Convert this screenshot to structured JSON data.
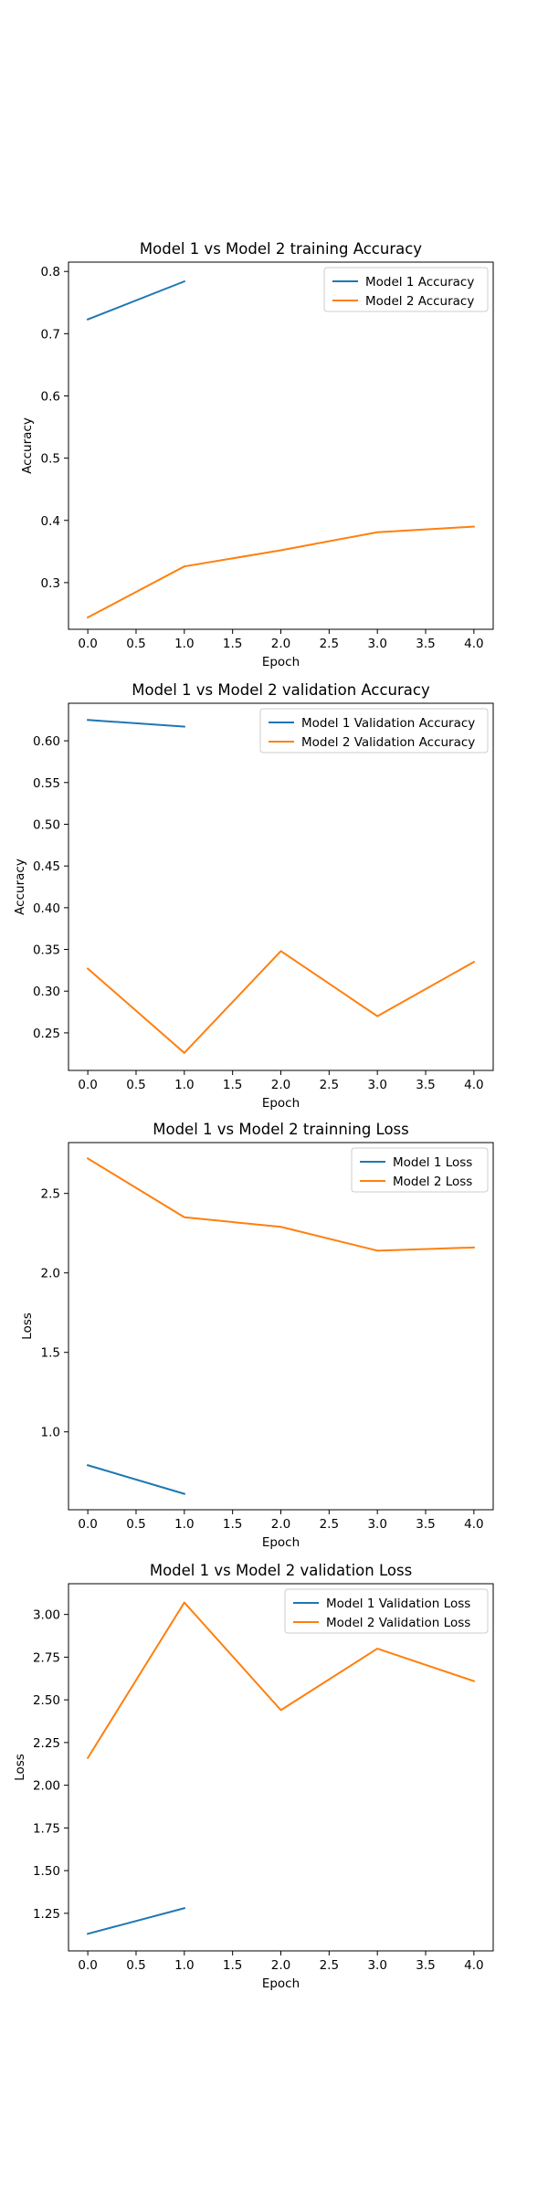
{
  "chart_data": [
    {
      "type": "line",
      "title": "Model 1 vs Model 2 training Accuracy",
      "xlabel": "Epoch",
      "ylabel": "Accuracy",
      "xlim": [
        -0.2,
        4.2
      ],
      "ylim": [
        0.225,
        0.815
      ],
      "xticks": [
        0.0,
        0.5,
        1.0,
        1.5,
        2.0,
        2.5,
        3.0,
        3.5,
        4.0
      ],
      "xtick_labels": [
        "0.0",
        "0.5",
        "1.0",
        "1.5",
        "2.0",
        "2.5",
        "3.0",
        "3.5",
        "4.0"
      ],
      "yticks": [
        0.3,
        0.4,
        0.5,
        0.6,
        0.7,
        0.8
      ],
      "ytick_labels": [
        "0.3",
        "0.4",
        "0.5",
        "0.6",
        "0.7",
        "0.8"
      ],
      "legend_position": "top-right",
      "series": [
        {
          "name": "Model 1 Accuracy",
          "color": "#1f77b4",
          "x": [
            0,
            1
          ],
          "y": [
            0.723,
            0.784
          ]
        },
        {
          "name": "Model 2 Accuracy",
          "color": "#ff7f0e",
          "x": [
            0,
            1,
            2,
            3,
            4
          ],
          "y": [
            0.244,
            0.326,
            0.352,
            0.381,
            0.39
          ]
        }
      ]
    },
    {
      "type": "line",
      "title": "Model 1 vs Model 2 validation Accuracy",
      "xlabel": "Epoch",
      "ylabel": "Accuracy",
      "xlim": [
        -0.2,
        4.2
      ],
      "ylim": [
        0.205,
        0.645
      ],
      "xticks": [
        0.0,
        0.5,
        1.0,
        1.5,
        2.0,
        2.5,
        3.0,
        3.5,
        4.0
      ],
      "xtick_labels": [
        "0.0",
        "0.5",
        "1.0",
        "1.5",
        "2.0",
        "2.5",
        "3.0",
        "3.5",
        "4.0"
      ],
      "yticks": [
        0.25,
        0.3,
        0.35,
        0.4,
        0.45,
        0.5,
        0.55,
        0.6
      ],
      "ytick_labels": [
        "0.25",
        "0.30",
        "0.35",
        "0.40",
        "0.45",
        "0.50",
        "0.55",
        "0.60"
      ],
      "legend_position": "top-right",
      "series": [
        {
          "name": "Model 1 Validation Accuracy",
          "color": "#1f77b4",
          "x": [
            0,
            1
          ],
          "y": [
            0.625,
            0.617
          ]
        },
        {
          "name": "Model 2 Validation Accuracy",
          "color": "#ff7f0e",
          "x": [
            0,
            1,
            2,
            3,
            4
          ],
          "y": [
            0.327,
            0.226,
            0.348,
            0.27,
            0.335
          ]
        }
      ]
    },
    {
      "type": "line",
      "title": "Model 1 vs Model 2 trainning Loss",
      "xlabel": "Epoch",
      "ylabel": "Loss",
      "xlim": [
        -0.2,
        4.2
      ],
      "ylim": [
        0.51,
        2.82
      ],
      "xticks": [
        0.0,
        0.5,
        1.0,
        1.5,
        2.0,
        2.5,
        3.0,
        3.5,
        4.0
      ],
      "xtick_labels": [
        "0.0",
        "0.5",
        "1.0",
        "1.5",
        "2.0",
        "2.5",
        "3.0",
        "3.5",
        "4.0"
      ],
      "yticks": [
        1.0,
        1.5,
        2.0,
        2.5
      ],
      "ytick_labels": [
        "1.0",
        "1.5",
        "2.0",
        "2.5"
      ],
      "legend_position": "top-right",
      "series": [
        {
          "name": "Model 1 Loss",
          "color": "#1f77b4",
          "x": [
            0,
            1
          ],
          "y": [
            0.79,
            0.61
          ]
        },
        {
          "name": "Model 2 Loss",
          "color": "#ff7f0e",
          "x": [
            0,
            1,
            2,
            3,
            4
          ],
          "y": [
            2.72,
            2.35,
            2.29,
            2.14,
            2.16
          ]
        }
      ]
    },
    {
      "type": "line",
      "title": "Model 1 vs Model 2 validation Loss",
      "xlabel": "Epoch",
      "ylabel": "Loss",
      "xlim": [
        -0.2,
        4.2
      ],
      "ylim": [
        1.03,
        3.18
      ],
      "xticks": [
        0.0,
        0.5,
        1.0,
        1.5,
        2.0,
        2.5,
        3.0,
        3.5,
        4.0
      ],
      "xtick_labels": [
        "0.0",
        "0.5",
        "1.0",
        "1.5",
        "2.0",
        "2.5",
        "3.0",
        "3.5",
        "4.0"
      ],
      "yticks": [
        1.25,
        1.5,
        1.75,
        2.0,
        2.25,
        2.5,
        2.75,
        3.0
      ],
      "ytick_labels": [
        "1.25",
        "1.50",
        "1.75",
        "2.00",
        "2.25",
        "2.50",
        "2.75",
        "3.00"
      ],
      "legend_position": "top-right",
      "series": [
        {
          "name": "Model 1 Validation Loss",
          "color": "#1f77b4",
          "x": [
            0,
            1
          ],
          "y": [
            1.13,
            1.28
          ]
        },
        {
          "name": "Model 2 Validation Loss",
          "color": "#ff7f0e",
          "x": [
            0,
            1,
            2,
            3,
            4
          ],
          "y": [
            2.16,
            3.07,
            2.44,
            2.8,
            2.61
          ]
        }
      ]
    }
  ]
}
